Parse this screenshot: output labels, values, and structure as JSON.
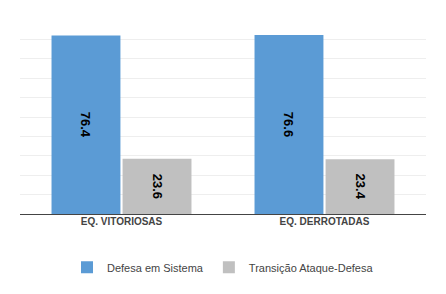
{
  "chart_data": {
    "type": "bar",
    "categories": [
      "EQ. VITORIOSAS",
      "EQ. DERROTADAS"
    ],
    "series": [
      {
        "name": "Defesa em Sistema",
        "color": "#5B9BD5",
        "values": [
          76.4,
          76.6
        ]
      },
      {
        "name": "Transição Ataque-Defesa",
        "color": "#C0C0C0",
        "values": [
          23.6,
          23.4
        ]
      }
    ],
    "ylim": [
      0,
      83
    ],
    "yticks": [
      0,
      8.3,
      16.6,
      24.9,
      33.2,
      41.5,
      49.8,
      58.1,
      66.4,
      74.7,
      83
    ],
    "grid": true,
    "tick_labels": "x",
    "legend": "bottom",
    "data_labels": true
  }
}
